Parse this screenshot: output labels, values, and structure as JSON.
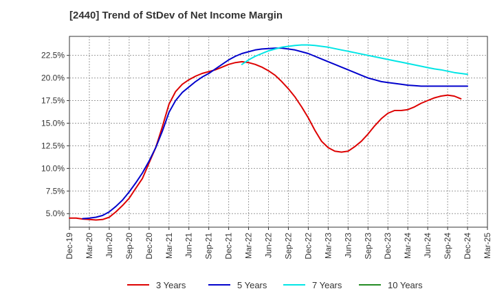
{
  "chart_data": {
    "type": "line",
    "title": "[2440]  Trend of StDev of Net Income Margin",
    "xlabel": "",
    "ylabel": "",
    "x_ticks": [
      "Dec-19",
      "Mar-20",
      "Jun-20",
      "Sep-20",
      "Dec-20",
      "Mar-21",
      "Jun-21",
      "Sep-21",
      "Dec-21",
      "Mar-22",
      "Jun-22",
      "Sep-22",
      "Dec-22",
      "Mar-23",
      "Jun-23",
      "Sep-23",
      "Dec-23",
      "Mar-24",
      "Jun-24",
      "Sep-24",
      "Dec-24",
      "Mar-25"
    ],
    "y_ticks": [
      "5.0%",
      "7.5%",
      "10.0%",
      "12.5%",
      "15.0%",
      "17.5%",
      "20.0%",
      "22.5%"
    ],
    "ylim": [
      3.5,
      24.6
    ],
    "grid": true,
    "legend_position": "bottom",
    "series": [
      {
        "name": "3 Years",
        "color": "#dd0000",
        "points": [
          [
            "Dec-19",
            4.5
          ],
          [
            "Jan-20",
            4.5
          ],
          [
            "Feb-20",
            4.4
          ],
          [
            "Mar-20",
            4.35
          ],
          [
            "Apr-20",
            4.3
          ],
          [
            "May-20",
            4.35
          ],
          [
            "Jun-20",
            4.6
          ],
          [
            "Jul-20",
            5.2
          ],
          [
            "Aug-20",
            5.9
          ],
          [
            "Sep-20",
            6.7
          ],
          [
            "Oct-20",
            7.8
          ],
          [
            "Nov-20",
            8.9
          ],
          [
            "Dec-20",
            10.6
          ],
          [
            "Jan-21",
            12.3
          ],
          [
            "Feb-21",
            14.6
          ],
          [
            "Mar-21",
            17.1
          ],
          [
            "Apr-21",
            18.5
          ],
          [
            "May-21",
            19.3
          ],
          [
            "Jun-21",
            19.8
          ],
          [
            "Jul-21",
            20.2
          ],
          [
            "Aug-21",
            20.5
          ],
          [
            "Sep-21",
            20.7
          ],
          [
            "Oct-21",
            20.9
          ],
          [
            "Nov-21",
            21.2
          ],
          [
            "Dec-21",
            21.5
          ],
          [
            "Jan-22",
            21.7
          ],
          [
            "Feb-22",
            21.8
          ],
          [
            "Mar-22",
            21.7
          ],
          [
            "Apr-22",
            21.5
          ],
          [
            "May-22",
            21.2
          ],
          [
            "Jun-22",
            20.8
          ],
          [
            "Jul-22",
            20.3
          ],
          [
            "Aug-22",
            19.6
          ],
          [
            "Sep-22",
            18.8
          ],
          [
            "Oct-22",
            17.9
          ],
          [
            "Nov-22",
            16.8
          ],
          [
            "Dec-22",
            15.6
          ],
          [
            "Jan-23",
            14.2
          ],
          [
            "Feb-23",
            13.0
          ],
          [
            "Mar-23",
            12.3
          ],
          [
            "Apr-23",
            11.9
          ],
          [
            "May-23",
            11.8
          ],
          [
            "Jun-23",
            11.9
          ],
          [
            "Jul-23",
            12.4
          ],
          [
            "Aug-23",
            13.0
          ],
          [
            "Sep-23",
            13.8
          ],
          [
            "Oct-23",
            14.7
          ],
          [
            "Nov-23",
            15.5
          ],
          [
            "Dec-23",
            16.1
          ],
          [
            "Jan-24",
            16.4
          ],
          [
            "Feb-24",
            16.4
          ],
          [
            "Mar-24",
            16.5
          ],
          [
            "Apr-24",
            16.8
          ],
          [
            "May-24",
            17.2
          ],
          [
            "Jun-24",
            17.5
          ],
          [
            "Jul-24",
            17.8
          ],
          [
            "Aug-24",
            18.0
          ],
          [
            "Sep-24",
            18.1
          ],
          [
            "Oct-24",
            18.0
          ],
          [
            "Nov-24",
            17.7
          ]
        ]
      },
      {
        "name": "5 Years",
        "color": "#0000cc",
        "points": [
          [
            "Feb-20",
            4.45
          ],
          [
            "Mar-20",
            4.5
          ],
          [
            "Apr-20",
            4.6
          ],
          [
            "May-20",
            4.8
          ],
          [
            "Jun-20",
            5.2
          ],
          [
            "Jul-20",
            5.8
          ],
          [
            "Aug-20",
            6.5
          ],
          [
            "Sep-20",
            7.4
          ],
          [
            "Oct-20",
            8.4
          ],
          [
            "Nov-20",
            9.5
          ],
          [
            "Dec-20",
            10.8
          ],
          [
            "Jan-21",
            12.3
          ],
          [
            "Feb-21",
            14.1
          ],
          [
            "Mar-21",
            16.2
          ],
          [
            "Apr-21",
            17.5
          ],
          [
            "May-21",
            18.4
          ],
          [
            "Jun-21",
            19.0
          ],
          [
            "Jul-21",
            19.6
          ],
          [
            "Aug-21",
            20.1
          ],
          [
            "Sep-21",
            20.5
          ],
          [
            "Oct-21",
            21.0
          ],
          [
            "Nov-21",
            21.5
          ],
          [
            "Dec-21",
            22.0
          ],
          [
            "Jan-22",
            22.4
          ],
          [
            "Feb-22",
            22.7
          ],
          [
            "Mar-22",
            22.9
          ],
          [
            "Apr-22",
            23.1
          ],
          [
            "May-22",
            23.2
          ],
          [
            "Jun-22",
            23.25
          ],
          [
            "Jul-22",
            23.3
          ],
          [
            "Aug-22",
            23.3
          ],
          [
            "Sep-22",
            23.2
          ],
          [
            "Oct-22",
            23.1
          ],
          [
            "Nov-22",
            22.9
          ],
          [
            "Dec-22",
            22.7
          ],
          [
            "Jan-23",
            22.4
          ],
          [
            "Feb-23",
            22.1
          ],
          [
            "Mar-23",
            21.8
          ],
          [
            "Apr-23",
            21.5
          ],
          [
            "May-23",
            21.2
          ],
          [
            "Jun-23",
            20.9
          ],
          [
            "Jul-23",
            20.6
          ],
          [
            "Aug-23",
            20.3
          ],
          [
            "Sep-23",
            20.0
          ],
          [
            "Oct-23",
            19.8
          ],
          [
            "Nov-23",
            19.6
          ],
          [
            "Dec-23",
            19.5
          ],
          [
            "Jan-24",
            19.4
          ],
          [
            "Feb-24",
            19.3
          ],
          [
            "Mar-24",
            19.2
          ],
          [
            "Apr-24",
            19.15
          ],
          [
            "May-24",
            19.1
          ],
          [
            "Jun-24",
            19.1
          ],
          [
            "Jul-24",
            19.1
          ],
          [
            "Aug-24",
            19.1
          ],
          [
            "Sep-24",
            19.1
          ],
          [
            "Oct-24",
            19.1
          ],
          [
            "Nov-24",
            19.1
          ],
          [
            "Dec-24",
            19.1
          ]
        ]
      },
      {
        "name": "7 Years",
        "color": "#00e5e5",
        "points": [
          [
            "Feb-22",
            21.5
          ],
          [
            "Mar-22",
            22.0
          ],
          [
            "Apr-22",
            22.4
          ],
          [
            "May-22",
            22.7
          ],
          [
            "Jun-22",
            23.0
          ],
          [
            "Jul-22",
            23.2
          ],
          [
            "Aug-22",
            23.4
          ],
          [
            "Sep-22",
            23.5
          ],
          [
            "Oct-22",
            23.6
          ],
          [
            "Nov-22",
            23.65
          ],
          [
            "Dec-22",
            23.65
          ],
          [
            "Jan-23",
            23.6
          ],
          [
            "Feb-23",
            23.5
          ],
          [
            "Mar-23",
            23.4
          ],
          [
            "Apr-23",
            23.25
          ],
          [
            "May-23",
            23.1
          ],
          [
            "Jun-23",
            22.95
          ],
          [
            "Jul-23",
            22.8
          ],
          [
            "Aug-23",
            22.65
          ],
          [
            "Sep-23",
            22.5
          ],
          [
            "Oct-23",
            22.35
          ],
          [
            "Nov-23",
            22.2
          ],
          [
            "Dec-23",
            22.05
          ],
          [
            "Jan-24",
            21.9
          ],
          [
            "Feb-24",
            21.75
          ],
          [
            "Mar-24",
            21.6
          ],
          [
            "Apr-24",
            21.45
          ],
          [
            "May-24",
            21.3
          ],
          [
            "Jun-24",
            21.15
          ],
          [
            "Jul-24",
            21.0
          ],
          [
            "Aug-24",
            20.9
          ],
          [
            "Sep-24",
            20.75
          ],
          [
            "Oct-24",
            20.6
          ],
          [
            "Nov-24",
            20.5
          ],
          [
            "Dec-24",
            20.4
          ]
        ]
      },
      {
        "name": "10 Years",
        "color": "#228b22",
        "points": []
      }
    ]
  }
}
